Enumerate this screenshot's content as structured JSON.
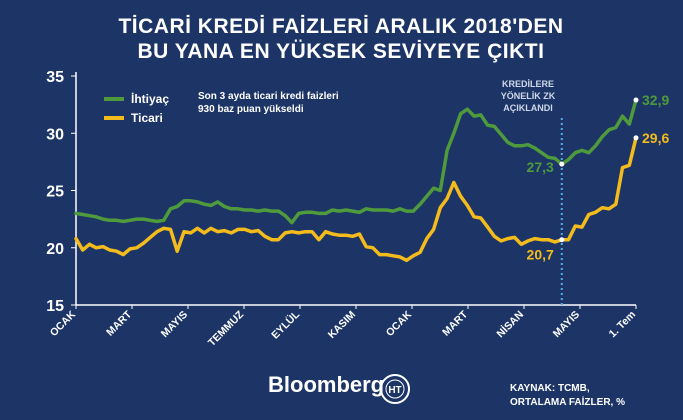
{
  "chart_data": {
    "type": "line",
    "title": [
      "TİCARİ KREDİ FAİZLERİ ARALIK 2018'DEN",
      "BU YANA EN YÜKSEK SEVİYEYE ÇIKTI"
    ],
    "ylim": [
      15,
      35
    ],
    "yticks": [
      "15",
      "20",
      "25",
      "30",
      "35"
    ],
    "x_ticks": [
      "OCAK",
      "MART",
      "MAYIS",
      "TEMMUZ",
      "EYLÜL",
      "KASIM",
      "OCAK",
      "MART",
      "NİSAN",
      "MAYIS",
      "1. Tem"
    ],
    "grid": false,
    "legend_position": "top-left",
    "series": [
      {
        "name": "İhtiyaç",
        "color": "#4e9a3c",
        "values": [
          23.0,
          22.9,
          22.8,
          22.7,
          22.5,
          22.4,
          22.4,
          22.3,
          22.4,
          22.5,
          22.5,
          22.4,
          22.3,
          22.4,
          23.4,
          23.6,
          24.1,
          24.1,
          24.0,
          23.8,
          23.7,
          24.0,
          23.6,
          23.4,
          23.4,
          23.3,
          23.3,
          23.2,
          23.3,
          23.2,
          23.2,
          22.8,
          22.2,
          23.0,
          23.1,
          23.1,
          23.0,
          23.0,
          23.3,
          23.2,
          23.3,
          23.2,
          23.1,
          23.4,
          23.3,
          23.3,
          23.3,
          23.2,
          23.4,
          23.2,
          23.2,
          23.8,
          24.5,
          25.2,
          25.0,
          28.5,
          30.0,
          31.7,
          32.1,
          31.5,
          31.6,
          30.7,
          30.6,
          29.9,
          29.2,
          28.9,
          28.9,
          29.0,
          28.7,
          28.3,
          27.9,
          27.8,
          27.3,
          27.7,
          28.3,
          28.5,
          28.3,
          28.9,
          29.7,
          30.3,
          30.5,
          31.5,
          30.8,
          32.9
        ]
      },
      {
        "name": "Ticari",
        "color": "#f3bb1c",
        "values": [
          20.8,
          19.8,
          20.3,
          20.0,
          20.1,
          19.8,
          19.7,
          19.4,
          19.9,
          20.0,
          20.4,
          20.9,
          21.4,
          21.7,
          21.6,
          19.7,
          21.4,
          21.3,
          21.7,
          21.3,
          21.7,
          21.4,
          21.5,
          21.3,
          21.6,
          21.6,
          21.4,
          21.5,
          21.0,
          20.7,
          20.7,
          21.3,
          21.4,
          21.3,
          21.4,
          21.4,
          20.7,
          21.4,
          21.2,
          21.1,
          21.1,
          21.0,
          21.2,
          20.1,
          20.0,
          19.4,
          19.4,
          19.3,
          19.2,
          18.9,
          19.3,
          19.6,
          20.8,
          21.6,
          23.5,
          24.3,
          25.7,
          24.5,
          23.7,
          22.7,
          22.6,
          21.8,
          21.0,
          20.6,
          20.8,
          20.9,
          20.3,
          20.6,
          20.8,
          20.7,
          20.7,
          20.5,
          20.7,
          20.7,
          21.9,
          21.8,
          22.9,
          23.1,
          23.5,
          23.4,
          23.8,
          27.0,
          27.2,
          29.6
        ]
      }
    ],
    "annotations": {
      "note": [
        "Son 3 ayda ticari kredi faizleri",
        "930 baz puan yükseldi"
      ],
      "event": [
        "KREDİLERE",
        "YÖNELİK ZK",
        "AÇIKLANDI"
      ],
      "event_index": 72,
      "labels": [
        {
          "series": 0,
          "index": 72,
          "text": "27,3"
        },
        {
          "series": 0,
          "index": 83,
          "text": "32,9"
        },
        {
          "series": 1,
          "index": 72,
          "text": "20,7"
        },
        {
          "series": 1,
          "index": 83,
          "text": "29,6"
        }
      ]
    }
  },
  "footer": {
    "brand": "Bloomberg",
    "logo_letters": "HT",
    "source": [
      "KAYNAK: TCMB,",
      "ORTALAMA FAİZLER, %"
    ]
  },
  "colors": {
    "background": "#1d3566",
    "axis": "#ffffff",
    "event_line": "#55a9e6"
  }
}
